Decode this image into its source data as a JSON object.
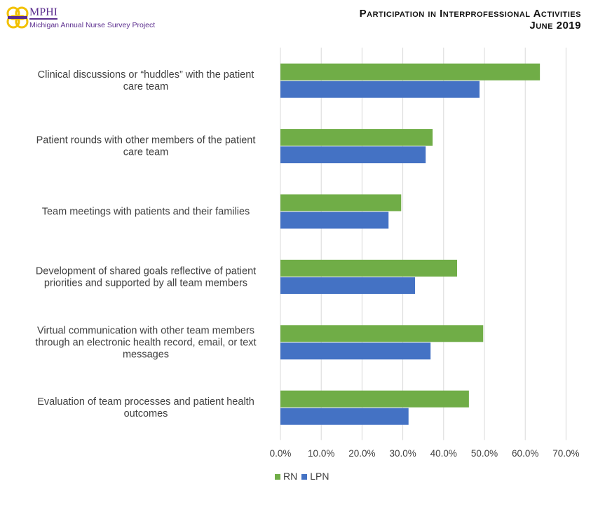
{
  "header": {
    "logo_text": "MPHI",
    "logo_subtitle": "Michigan Annual Nurse Survey Project",
    "title_line1": "Participation in Interprofessional Activities",
    "title_line2": "June 2019"
  },
  "colors": {
    "RN": "#70ad47",
    "LPN": "#4472c4",
    "logo": "#5b2d8e",
    "logo_ring": "#f2c100"
  },
  "chart_data": {
    "type": "bar",
    "orientation": "horizontal",
    "categories": [
      [
        "Clinical discussions or “huddles” with the patient",
        "care team"
      ],
      [
        "Patient rounds with other members of the patient",
        "care team"
      ],
      [
        "Team meetings with patients and their families"
      ],
      [
        "Development of shared goals reflective of patient",
        "priorities and supported by all team members"
      ],
      [
        "Virtual communication with other team members",
        "through an electronic health record, email, or text",
        "messages"
      ],
      [
        "Evaluation of team processes and patient health",
        "outcomes"
      ]
    ],
    "series": [
      {
        "name": "RN",
        "values": [
          63.6,
          37.3,
          29.6,
          43.3,
          49.7,
          46.2
        ]
      },
      {
        "name": "LPN",
        "values": [
          48.8,
          35.6,
          26.5,
          33.0,
          36.8,
          31.4
        ]
      }
    ],
    "xlim": [
      0,
      70
    ],
    "tick_labels": [
      "0.0%",
      "10.0%",
      "20.0%",
      "30.0%",
      "40.0%",
      "50.0%",
      "60.0%",
      "70.0%"
    ],
    "grid": true,
    "legend": "bottom-left"
  }
}
